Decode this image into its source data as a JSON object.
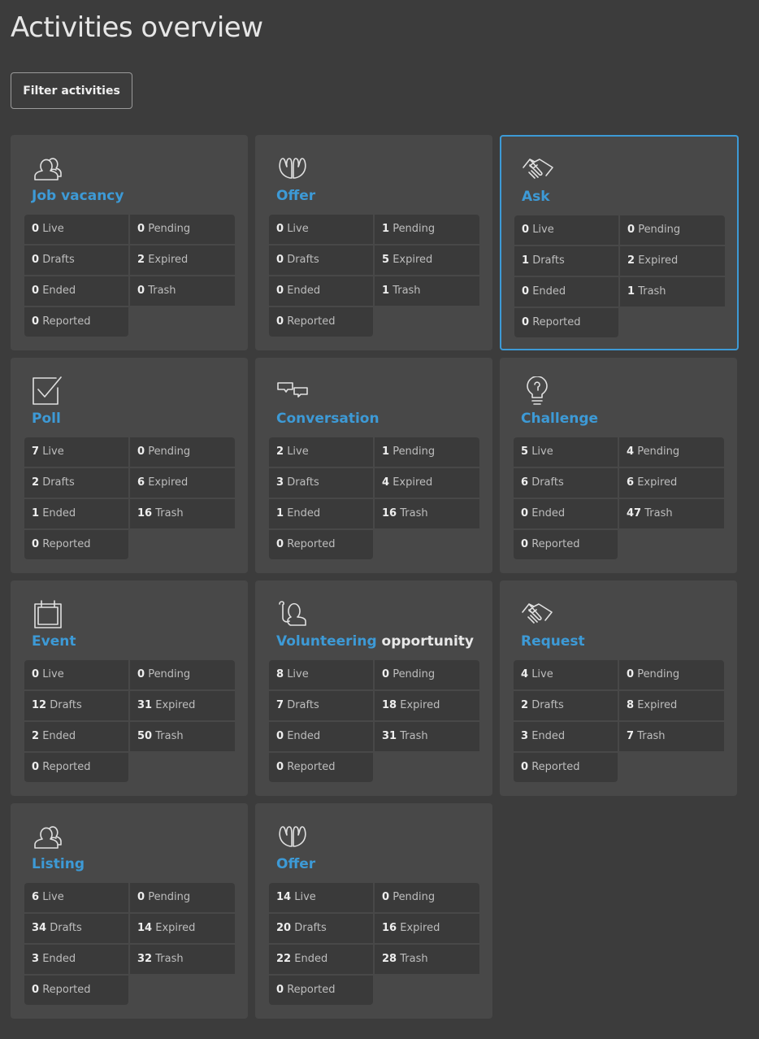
{
  "page": {
    "title": "Activities overview",
    "filter_label": "Filter activities",
    "accent": "#3d9ad6"
  },
  "stat_labels": [
    "Live",
    "Pending",
    "Drafts",
    "Expired",
    "Ended",
    "Trash",
    "Reported"
  ],
  "cards": [
    {
      "title": "Job vacancy",
      "icon": "people-icon",
      "selected": false,
      "values": [
        "0",
        "0",
        "0",
        "2",
        "0",
        "0",
        "0"
      ]
    },
    {
      "title": "Offer",
      "icon": "hands-icon",
      "selected": false,
      "values": [
        "0",
        "1",
        "0",
        "5",
        "0",
        "1",
        "0"
      ]
    },
    {
      "title": "Ask",
      "icon": "handshake-icon",
      "selected": true,
      "values": [
        "0",
        "0",
        "1",
        "2",
        "0",
        "1",
        "0"
      ]
    },
    {
      "title": "Poll",
      "icon": "checkbox-icon",
      "selected": false,
      "values": [
        "7",
        "0",
        "2",
        "6",
        "1",
        "16",
        "0"
      ]
    },
    {
      "title": "Conversation",
      "icon": "chat-bubbles-icon",
      "selected": false,
      "values": [
        "2",
        "1",
        "3",
        "4",
        "1",
        "16",
        "0"
      ]
    },
    {
      "title": "Challenge",
      "icon": "lightbulb-icon",
      "selected": false,
      "values": [
        "5",
        "4",
        "6",
        "6",
        "0",
        "47",
        "0"
      ]
    },
    {
      "title": "Event",
      "icon": "calendar-icon",
      "selected": false,
      "values": [
        "0",
        "0",
        "12",
        "31",
        "2",
        "50",
        "0"
      ]
    },
    {
      "title": "Volunteering",
      "title_extra": "opportunity",
      "icon": "raised-hand-icon",
      "selected": false,
      "values": [
        "8",
        "0",
        "7",
        "18",
        "0",
        "31",
        "0"
      ]
    },
    {
      "title": "Request",
      "icon": "handshake-icon",
      "selected": false,
      "values": [
        "4",
        "0",
        "2",
        "8",
        "3",
        "7",
        "0"
      ]
    },
    {
      "title": "Listing",
      "icon": "people-icon",
      "selected": false,
      "values": [
        "6",
        "0",
        "34",
        "14",
        "3",
        "32",
        "0"
      ]
    },
    {
      "title": "Offer",
      "icon": "hands-icon",
      "selected": false,
      "values": [
        "14",
        "0",
        "20",
        "16",
        "22",
        "28",
        "0"
      ]
    }
  ]
}
